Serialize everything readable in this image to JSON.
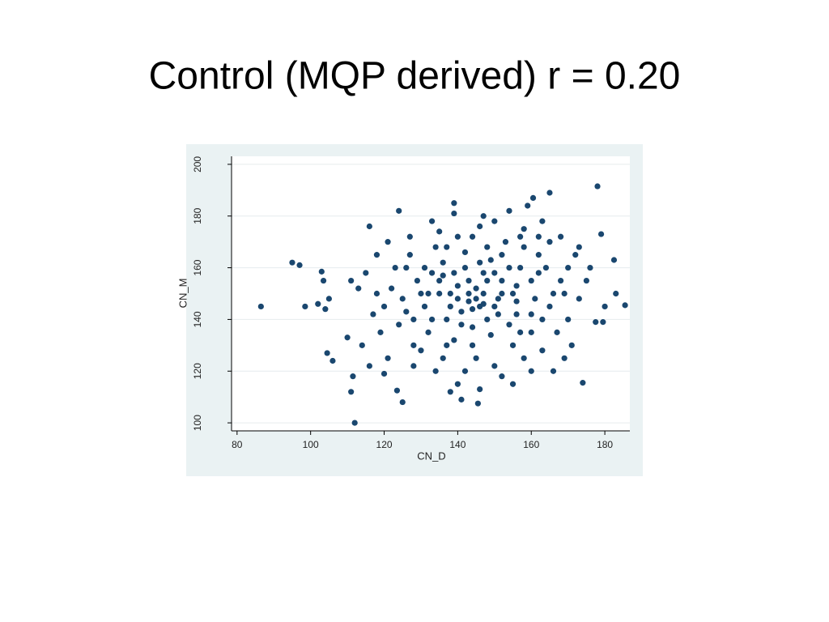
{
  "chart_data": {
    "type": "scatter",
    "title": "Control (MQP derived) r = 0.20",
    "xlabel": "CN_D",
    "ylabel": "CN_M",
    "color": "#1a476f",
    "grid": true,
    "xlim": [
      78.5,
      186.8
    ],
    "ylim": [
      96.9,
      203.1
    ],
    "xticks": [
      80,
      100,
      120,
      140,
      160,
      180
    ],
    "yticks": [
      100,
      120,
      140,
      160,
      180,
      200
    ],
    "x": [
      86.5,
      95,
      97,
      98.5,
      102,
      103,
      103.5,
      104,
      104.5,
      105,
      106,
      111,
      112,
      111.5,
      110,
      124,
      125,
      145.5,
      141,
      138,
      178,
      165,
      160.5,
      174,
      185.5,
      183,
      182.5,
      180,
      179.5,
      177.5,
      179,
      116,
      116,
      120,
      123.5,
      139,
      130,
      135,
      140,
      145,
      150,
      142,
      138,
      148,
      155,
      152,
      136,
      128,
      132,
      144,
      156,
      160,
      162,
      165,
      158,
      150,
      146,
      140,
      134,
      126,
      122,
      120,
      124,
      130,
      136,
      142,
      150,
      155,
      160,
      165,
      168,
      170,
      172,
      175,
      170,
      167,
      163,
      158,
      152,
      146,
      140,
      134,
      128,
      118,
      115,
      118,
      121,
      127,
      133,
      139,
      147,
      154,
      159,
      163,
      168,
      173,
      176,
      173,
      169,
      164,
      157,
      152,
      147,
      143,
      139,
      135,
      131,
      137,
      141,
      146,
      151,
      156,
      161,
      160,
      154,
      149,
      144,
      139,
      133,
      129,
      125,
      123,
      127,
      131,
      137,
      142,
      148,
      153,
      158,
      162,
      166,
      163,
      157,
      151,
      147,
      143,
      140,
      136,
      144,
      148,
      152,
      146,
      141,
      138,
      150,
      154,
      133,
      126,
      119,
      117,
      113,
      111,
      114,
      121,
      171,
      169,
      166,
      160,
      155,
      137,
      145,
      128,
      157,
      144,
      135,
      162,
      149,
      156,
      132,
      145,
      143,
      147
    ],
    "values": [
      145,
      162,
      161,
      145,
      146,
      158.5,
      155,
      144,
      127,
      148,
      124,
      112,
      100,
      118,
      133,
      182,
      108,
      107.5,
      109,
      112,
      191.5,
      189,
      187,
      115.5,
      145.5,
      150,
      163,
      145,
      139,
      139,
      173,
      176,
      122,
      119,
      112.5,
      185,
      150,
      155,
      148,
      152,
      158,
      160,
      145,
      140,
      150,
      165,
      162,
      140,
      135,
      130,
      142,
      155,
      165,
      170,
      175,
      178,
      176,
      172,
      168,
      160,
      152,
      145,
      138,
      128,
      125,
      120,
      122,
      130,
      135,
      145,
      155,
      160,
      165,
      155,
      140,
      135,
      128,
      125,
      118,
      113,
      115,
      120,
      130,
      150,
      158,
      165,
      170,
      172,
      178,
      181,
      180,
      182,
      184,
      178,
      172,
      168,
      160,
      148,
      150,
      160,
      160,
      155,
      158,
      155,
      158,
      150,
      145,
      140,
      138,
      145,
      148,
      147,
      148,
      142,
      138,
      134,
      137,
      132,
      140,
      155,
      148,
      160,
      165,
      160,
      168,
      166,
      168,
      170,
      168,
      158,
      150,
      140,
      135,
      142,
      150,
      147,
      153,
      157,
      144,
      155,
      150,
      162,
      143,
      150,
      145,
      160,
      158,
      143,
      135,
      142,
      152,
      155,
      130,
      125,
      130,
      125,
      120,
      120,
      115,
      130,
      125,
      122,
      172,
      172,
      174,
      172,
      163,
      153,
      150,
      148,
      150,
      146
    ]
  }
}
